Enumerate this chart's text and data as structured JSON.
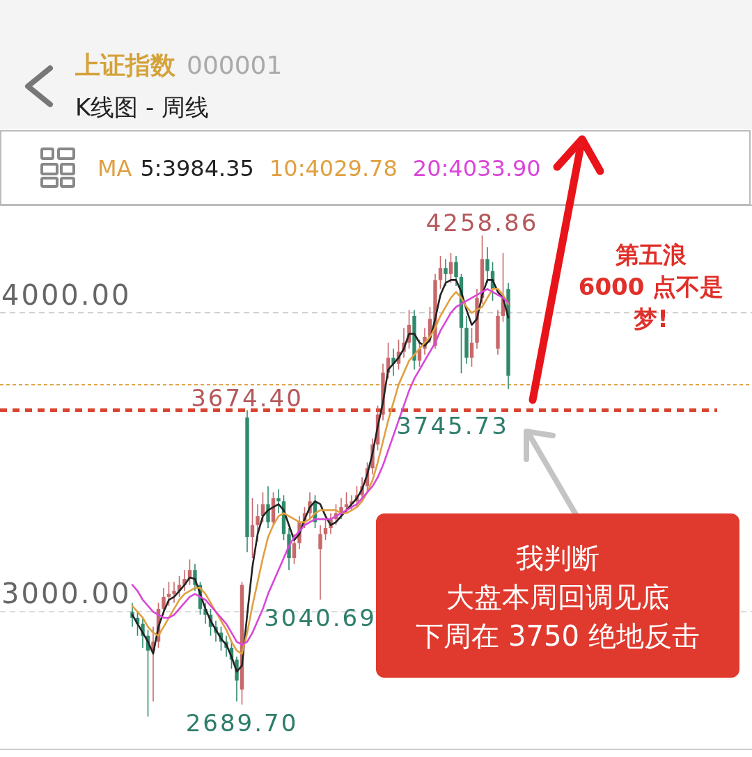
{
  "chart_data": {
    "type": "candlestick",
    "title": "上证指数",
    "subtitle": "K线图 - 周线",
    "legend_title": "MA",
    "legend": "top",
    "grid": "y",
    "ylim": [
      2540,
      4360
    ],
    "yticks": [
      {
        "value": 3000,
        "label": "3000.00"
      },
      {
        "value": 4000,
        "label": "4000.00"
      }
    ],
    "categories": [
      null,
      null,
      null,
      null,
      null,
      null,
      null,
      null,
      null,
      null,
      null,
      null,
      null,
      null,
      null,
      null,
      null,
      null,
      null,
      null,
      null,
      null,
      null,
      null,
      null,
      null,
      null,
      null,
      null,
      null,
      null,
      null,
      null,
      null,
      null,
      null,
      null,
      null,
      null,
      null,
      null,
      null,
      null,
      null,
      null,
      null,
      null,
      null,
      null,
      null,
      null,
      null,
      null,
      null,
      null,
      null,
      null,
      null,
      null,
      null,
      null,
      null,
      null,
      null,
      null,
      null,
      null,
      null,
      null,
      null,
      null,
      null,
      null
    ],
    "ohlc": [
      [
        3000,
        3030,
        2950,
        2980
      ],
      [
        2980,
        3000,
        2920,
        2960
      ],
      [
        2960,
        2980,
        2880,
        2920
      ],
      [
        2920,
        2940,
        2650,
        2870
      ],
      [
        2870,
        2950,
        2700,
        2900
      ],
      [
        2900,
        3030,
        2880,
        3010
      ],
      [
        3010,
        3080,
        2990,
        3050
      ],
      [
        3050,
        3100,
        3020,
        3060
      ],
      [
        3060,
        3100,
        3030,
        3070
      ],
      [
        3070,
        3120,
        3050,
        3090
      ],
      [
        3090,
        3140,
        3070,
        3110
      ],
      [
        3110,
        3175,
        3090,
        3140
      ],
      [
        3140,
        3160,
        3070,
        3090
      ],
      [
        3090,
        3100,
        2990,
        3010
      ],
      [
        3010,
        3030,
        2960,
        2990
      ],
      [
        2990,
        3010,
        2920,
        2950
      ],
      [
        2950,
        2970,
        2900,
        2930
      ],
      [
        2930,
        2950,
        2870,
        2900
      ],
      [
        2900,
        2920,
        2850,
        2880
      ],
      [
        2880,
        2900,
        2810,
        2840
      ],
      [
        2840,
        2850,
        2700,
        2770
      ],
      [
        2740,
        3100,
        2689.7,
        3090
      ],
      [
        3650,
        3674.4,
        3200,
        3250
      ],
      [
        3250,
        3380,
        3180,
        3290
      ],
      [
        3290,
        3360,
        3235,
        3320
      ],
      [
        3320,
        3400,
        3300,
        3360
      ],
      [
        3360,
        3420,
        3280,
        3300
      ],
      [
        3300,
        3400,
        3290,
        3380
      ],
      [
        3380,
        3410,
        3330,
        3370
      ],
      [
        3370,
        3390,
        3240,
        3260
      ],
      [
        3260,
        3280,
        3140,
        3180
      ],
      [
        3180,
        3260,
        3160,
        3230
      ],
      [
        3230,
        3320,
        3210,
        3300
      ],
      [
        3300,
        3350,
        3280,
        3330
      ],
      [
        3330,
        3400,
        3310,
        3370
      ],
      [
        3370,
        3390,
        3280,
        3300
      ],
      [
        3210,
        3290,
        3040.69,
        3260
      ],
      [
        3260,
        3310,
        3240,
        3280
      ],
      [
        3280,
        3330,
        3260,
        3310
      ],
      [
        3310,
        3360,
        3290,
        3330
      ],
      [
        3330,
        3380,
        3310,
        3350
      ],
      [
        3350,
        3400,
        3330,
        3360
      ],
      [
        3360,
        3390,
        3340,
        3370
      ],
      [
        3370,
        3420,
        3350,
        3390
      ],
      [
        3390,
        3450,
        3370,
        3420
      ],
      [
        3420,
        3500,
        3400,
        3480
      ],
      [
        3480,
        3580,
        3460,
        3560
      ],
      [
        3560,
        3690,
        3540,
        3660
      ],
      [
        3660,
        3830,
        3640,
        3800
      ],
      [
        3800,
        3900,
        3780,
        3850
      ],
      [
        3850,
        3880,
        3790,
        3830
      ],
      [
        3830,
        3910,
        3810,
        3870
      ],
      [
        3870,
        3950,
        3850,
        3900
      ],
      [
        3900,
        4010,
        3880,
        3960
      ],
      [
        3990,
        4010,
        3810,
        3840
      ],
      [
        3840,
        3910,
        3820,
        3880
      ],
      [
        3880,
        3950,
        3860,
        3920
      ],
      [
        3920,
        4020,
        3900,
        3980
      ],
      [
        3890,
        4130,
        3880,
        4110
      ],
      [
        4110,
        4190,
        4080,
        4150
      ],
      [
        4150,
        4180,
        4090,
        4130
      ],
      [
        4130,
        4200,
        4100,
        4170
      ],
      [
        4170,
        4190,
        4090,
        4120
      ],
      [
        4120,
        4130,
        3798,
        3950
      ],
      [
        3950,
        3990,
        3830,
        3850
      ],
      [
        3850,
        3950,
        3820,
        3900
      ],
      [
        3900,
        4080,
        3880,
        4050
      ],
      [
        4050,
        4258.86,
        4030,
        4180
      ],
      [
        4180,
        4220,
        4100,
        4140
      ],
      [
        4140,
        4170,
        4040,
        4080
      ],
      [
        3880,
        4010,
        3860,
        3990
      ],
      [
        3990,
        4200,
        3970,
        4050
      ],
      [
        4080,
        4100,
        3745.73,
        3790
      ]
    ],
    "series": [
      {
        "name": "5:3984.35",
        "type": "line",
        "color": "#222222",
        "values": [
          2990,
          2960,
          2930,
          2900,
          2860,
          2950,
          3000,
          3040,
          3050,
          3070,
          3090,
          3115,
          3110,
          3060,
          3010,
          2970,
          2940,
          2910,
          2890,
          2850,
          2800,
          2820,
          2990,
          3150,
          3260,
          3320,
          3340,
          3350,
          3360,
          3340,
          3290,
          3240,
          3260,
          3310,
          3350,
          3370,
          3360,
          3320,
          3290,
          3300,
          3320,
          3340,
          3360,
          3380,
          3410,
          3460,
          3530,
          3620,
          3700,
          3810,
          3830,
          3850,
          3880,
          3930,
          3930,
          3900,
          3890,
          3910,
          3980,
          4060,
          4100,
          4110,
          4110,
          4070,
          4010,
          3960,
          3980,
          4060,
          4110,
          4110,
          4070,
          4050,
          3984.35
        ]
      },
      {
        "name": "10:4029.78",
        "type": "line",
        "color": "#e0a040",
        "values": [
          3020,
          3000,
          2980,
          2950,
          2930,
          2920,
          2950,
          2980,
          3010,
          3040,
          3060,
          3070,
          3080,
          3080,
          3060,
          3030,
          3000,
          2970,
          2940,
          2900,
          2870,
          2860,
          2930,
          3020,
          3100,
          3180,
          3250,
          3290,
          3320,
          3330,
          3320,
          3310,
          3300,
          3300,
          3310,
          3330,
          3340,
          3340,
          3340,
          3340,
          3330,
          3330,
          3340,
          3350,
          3370,
          3400,
          3440,
          3500,
          3570,
          3640,
          3700,
          3760,
          3800,
          3840,
          3860,
          3880,
          3900,
          3920,
          3950,
          3990,
          4020,
          4050,
          4070,
          4050,
          4020,
          4000,
          4010,
          4020,
          4050,
          4080,
          4080,
          4060,
          4029.78
        ]
      },
      {
        "name": "20:4033.90",
        "type": "line",
        "color": "#d946d9",
        "values": [
          3090,
          3070,
          3040,
          3020,
          3000,
          2990,
          2980,
          2980,
          2990,
          3010,
          3030,
          3050,
          3060,
          3050,
          3040,
          3020,
          3000,
          2980,
          2960,
          2930,
          2900,
          2890,
          2900,
          2930,
          2970,
          3010,
          3060,
          3100,
          3140,
          3180,
          3220,
          3250,
          3270,
          3290,
          3300,
          3310,
          3310,
          3310,
          3310,
          3320,
          3330,
          3340,
          3350,
          3360,
          3380,
          3400,
          3420,
          3450,
          3490,
          3540,
          3590,
          3640,
          3690,
          3740,
          3780,
          3810,
          3840,
          3870,
          3900,
          3940,
          3970,
          4000,
          4020,
          4030,
          4040,
          4050,
          4060,
          4070,
          4080,
          4070,
          4060,
          4050,
          4033.9
        ]
      }
    ],
    "ref_lines": [
      {
        "axis": "y",
        "value": 3674.4,
        "color": "#d9432f",
        "line_style": "dashed"
      },
      {
        "axis": "y",
        "value": 3760,
        "color": "#e0a040",
        "line_style": "dashed"
      }
    ],
    "annotations": [
      "000001",
      "第五浪",
      "6000 点不是",
      "梦!",
      "我判断",
      "大盘本周回调见底",
      "下周在 3750 绝地反击",
      "3745.73",
      {
        "text": "4258.86",
        "y": 4258.86
      },
      {
        "text": "3674.40",
        "y": 3674.4
      },
      {
        "text": "3040.69",
        "y": 3040.69
      },
      {
        "text": "2689.70",
        "y": 2689.7
      }
    ]
  }
}
